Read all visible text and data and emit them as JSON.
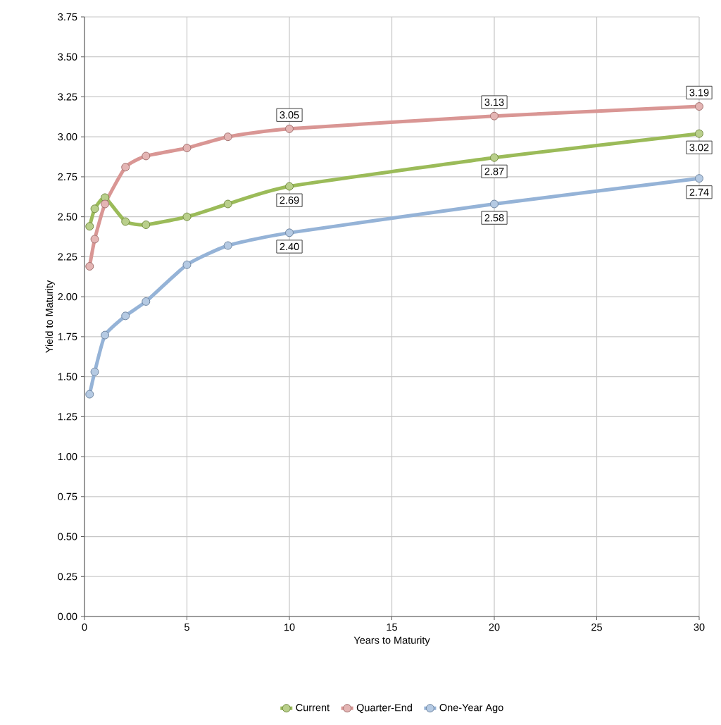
{
  "chart_data": {
    "type": "line",
    "xlabel": "Years to Maturity",
    "ylabel": "Yield to Maturity",
    "x": [
      0.25,
      0.5,
      1,
      2,
      3,
      5,
      7,
      10,
      20,
      30
    ],
    "xlim": [
      0,
      30
    ],
    "xticks": [
      0,
      5,
      10,
      15,
      20,
      25,
      30
    ],
    "ylim": [
      0,
      3.75
    ],
    "yticks": [
      {
        "value": 0,
        "label": "0.00"
      },
      {
        "value": 0.25,
        "label": "0.25"
      },
      {
        "value": 0.5,
        "label": "0.50"
      },
      {
        "value": 0.75,
        "label": "0.75"
      },
      {
        "value": 1,
        "label": "1.00"
      },
      {
        "value": 1.25,
        "label": "1.25"
      },
      {
        "value": 1.5,
        "label": "1.50"
      },
      {
        "value": 1.75,
        "label": "1.75"
      },
      {
        "value": 2,
        "label": "2.00"
      },
      {
        "value": 2.25,
        "label": "2.25"
      },
      {
        "value": 2.5,
        "label": "2.50"
      },
      {
        "value": 2.75,
        "label": "2.75"
      },
      {
        "value": 3,
        "label": "3.00"
      },
      {
        "value": 3.25,
        "label": "3.25"
      },
      {
        "value": 3.5,
        "label": "3.50"
      },
      {
        "value": 3.75,
        "label": "3.75"
      }
    ],
    "grid": true,
    "legend": "bottom",
    "marker": "circle",
    "line_style": "solid",
    "series": [
      {
        "name": "Current",
        "color": "#9bbb59",
        "values": [
          2.44,
          2.55,
          2.62,
          2.47,
          2.45,
          2.5,
          2.58,
          2.69,
          2.87,
          3.02
        ],
        "value_labels": [
          null,
          null,
          null,
          null,
          null,
          null,
          null,
          "2.69",
          "2.87",
          "3.02"
        ]
      },
      {
        "name": "Quarter-End",
        "color": "#d99694",
        "values": [
          2.19,
          2.36,
          2.58,
          2.81,
          2.88,
          2.93,
          3.0,
          3.05,
          3.13,
          3.19
        ],
        "value_labels": [
          null,
          null,
          null,
          null,
          null,
          null,
          null,
          "3.05",
          "3.13",
          "3.19"
        ]
      },
      {
        "name": "One-Year Ago",
        "color": "#95b3d7",
        "values": [
          1.39,
          1.53,
          1.76,
          1.88,
          1.97,
          2.2,
          2.32,
          2.4,
          2.58,
          2.74
        ],
        "value_labels": [
          null,
          null,
          null,
          null,
          null,
          null,
          null,
          "2.40",
          "2.58",
          "2.74"
        ]
      }
    ]
  }
}
